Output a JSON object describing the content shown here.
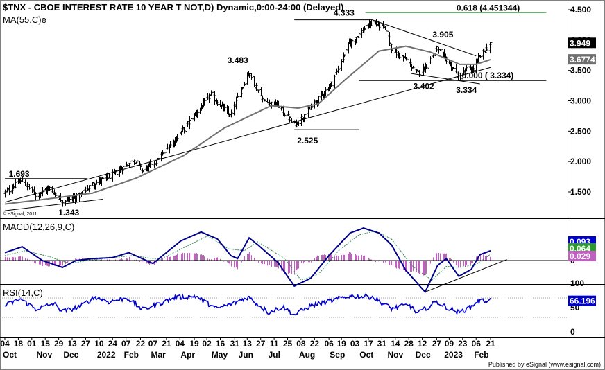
{
  "header": {
    "title": "$TNX - CBOE INTEREST RATE 10 YEAR T NOT,D) Dynamic,0:00-24:00 (Delayed)",
    "ma_label": "MA(55,C)e",
    "copyright": "© eSignal, 2011"
  },
  "publisher": "Published by eSignal (www.esignal.com)",
  "colors": {
    "price_bars": "#000000",
    "ma_line": "#707070",
    "fib_line": "#2e9a2e",
    "macd_line": "#00008b",
    "signal_line": "#2e8b57",
    "histogram": "#c060c0",
    "rsi_line": "#0000cd",
    "tag_price": "#000000",
    "tag_ma": "#707070",
    "tag_green": "#2e9a2e",
    "tag_blue": "#0000cd",
    "tag_histo": "#c060c0"
  },
  "chart_data": [
    {
      "id": "price",
      "type": "ohlc",
      "title": "$TNX - CBOE INTEREST RATE 10 YEAR T NOT,D) Dynamic,0:00-24:00 (Delayed)",
      "ylim": [
        1.0,
        4.55
      ],
      "yticks": [
        "4.500",
        "4.000",
        "3.500",
        "3.000",
        "2.500",
        "2.000",
        "1.500"
      ],
      "ytick_values": [
        4.5,
        4.0,
        3.5,
        3.0,
        2.5,
        2.0,
        1.5
      ],
      "x_date_range": [
        "2021-10-04",
        "2023-02-21"
      ],
      "anchors": [
        [
          "2021-10-04",
          1.48
        ],
        [
          "2021-10-21",
          1.69
        ],
        [
          "2021-11-05",
          1.45
        ],
        [
          "2021-11-19",
          1.56
        ],
        [
          "2021-12-03",
          1.35
        ],
        [
          "2021-12-20",
          1.43
        ],
        [
          "2022-01-03",
          1.63
        ],
        [
          "2022-01-24",
          1.78
        ],
        [
          "2022-02-08",
          1.95
        ],
        [
          "2022-02-15",
          2.04
        ],
        [
          "2022-02-24",
          1.85
        ],
        [
          "2022-03-10",
          2.0
        ],
        [
          "2022-04-01",
          2.4
        ],
        [
          "2022-05-06",
          3.1
        ],
        [
          "2022-05-26",
          2.75
        ],
        [
          "2022-06-14",
          3.47
        ],
        [
          "2022-06-30",
          3.0
        ],
        [
          "2022-07-15",
          2.92
        ],
        [
          "2022-08-01",
          2.6
        ],
        [
          "2022-08-18",
          2.88
        ],
        [
          "2022-09-09",
          3.3
        ],
        [
          "2022-09-27",
          3.95
        ],
        [
          "2022-10-21",
          4.3
        ],
        [
          "2022-11-04",
          4.18
        ],
        [
          "2022-11-11",
          3.82
        ],
        [
          "2022-11-25",
          3.68
        ],
        [
          "2022-12-07",
          3.45
        ],
        [
          "2022-12-13",
          3.52
        ],
        [
          "2022-12-27",
          3.86
        ],
        [
          "2023-01-05",
          3.7
        ],
        [
          "2023-01-19",
          3.39
        ],
        [
          "2023-01-27",
          3.52
        ],
        [
          "2023-02-03",
          3.52
        ],
        [
          "2023-02-10",
          3.74
        ],
        [
          "2023-02-21",
          3.95
        ]
      ],
      "ma_anchors": [
        [
          "2021-10-04",
          1.3
        ],
        [
          "2021-11-15",
          1.38
        ],
        [
          "2022-01-03",
          1.48
        ],
        [
          "2022-02-18",
          1.73
        ],
        [
          "2022-04-08",
          2.1
        ],
        [
          "2022-05-20",
          2.55
        ],
        [
          "2022-07-08",
          2.92
        ],
        [
          "2022-08-05",
          2.88
        ],
        [
          "2022-08-26",
          2.95
        ],
        [
          "2022-09-23",
          3.35
        ],
        [
          "2022-10-28",
          3.82
        ],
        [
          "2022-11-25",
          3.9
        ],
        [
          "2022-12-21",
          3.8
        ],
        [
          "2023-01-20",
          3.6
        ],
        [
          "2023-02-06",
          3.6
        ],
        [
          "2023-02-21",
          3.68
        ]
      ],
      "annotations": [
        {
          "text": "4.333",
          "date": "2022-10-14",
          "value": 4.333
        },
        {
          "text": "3.905",
          "date": "2022-12-27",
          "value": 3.905
        },
        {
          "text": "3.483",
          "date": "2022-06-14",
          "value": 3.483
        },
        {
          "text": "3.402",
          "date": "2022-12-07",
          "value": 3.402
        },
        {
          "text": "3.334",
          "date": "2023-01-19",
          "value": 3.334
        },
        {
          "text": "2.525",
          "date": "2022-08-01",
          "value": 2.525
        },
        {
          "text": "1.693",
          "date": "2021-10-21",
          "value": 1.693
        },
        {
          "text": "1.343",
          "date": "2021-12-03",
          "value": 1.343
        },
        {
          "text": "0.000 ( 3.334)",
          "date": "2023-01-25",
          "value": 3.334
        },
        {
          "text": "0.618 (4.451344)",
          "date": "2023-01-05",
          "value": 4.451344
        }
      ],
      "trendlines": [
        {
          "name": "support-trendline",
          "from": [
            "2021-10-04",
            1.33
          ],
          "to": [
            "2023-02-21",
            3.55
          ]
        },
        {
          "name": "falling-trendline",
          "from": [
            "2022-10-21",
            4.333
          ],
          "to": [
            "2023-02-06",
            3.74
          ]
        },
        {
          "name": "lower-channel-line",
          "from": [
            "2022-11-30",
            3.45
          ],
          "to": [
            "2023-02-10",
            3.28
          ]
        },
        {
          "name": "early-lower-line",
          "from": [
            "2021-10-04",
            1.19
          ],
          "to": [
            "2022-01-14",
            1.38
          ]
        },
        {
          "name": "early-upper-line",
          "from": [
            "2021-10-04",
            1.72
          ],
          "to": [
            "2021-12-29",
            1.72
          ]
        },
        {
          "name": "high-4333-line",
          "from": [
            "2022-08-01",
            4.333
          ],
          "to": [
            "2022-10-21",
            4.333
          ]
        },
        {
          "name": "low-2525-line",
          "from": [
            "2022-08-01",
            2.525
          ],
          "to": [
            "2022-10-07",
            2.525
          ]
        },
        {
          "name": "low-3334-line",
          "from": [
            "2022-10-07",
            3.334
          ],
          "to": [
            "2023-04-20",
            3.334
          ]
        },
        {
          "name": "fib-0618-line",
          "from": [
            "2022-10-14",
            4.451344
          ],
          "to": [
            "2023-04-20",
            4.451344
          ]
        }
      ],
      "tags": [
        {
          "text": "3.949",
          "value": 3.949,
          "kind": "price"
        },
        {
          "text": "3.67741",
          "value": 3.67741,
          "kind": "ma"
        }
      ]
    },
    {
      "id": "macd",
      "type": "line",
      "title": "MACD(12,26,9,C)",
      "ylim": [
        -0.42,
        0.42
      ],
      "zero_line": 0,
      "macd_anchors": [
        [
          "2021-10-04",
          0.08
        ],
        [
          "2021-10-22",
          0.14
        ],
        [
          "2021-11-12",
          0.0
        ],
        [
          "2021-12-03",
          -0.07
        ],
        [
          "2021-12-17",
          0.0
        ],
        [
          "2022-01-03",
          0.02
        ],
        [
          "2022-01-24",
          0.03
        ],
        [
          "2022-02-10",
          0.08
        ],
        [
          "2022-03-07",
          -0.03
        ],
        [
          "2022-04-05",
          0.2
        ],
        [
          "2022-04-26",
          0.29
        ],
        [
          "2022-05-13",
          0.22
        ],
        [
          "2022-05-27",
          0.05
        ],
        [
          "2022-06-03",
          0.02
        ],
        [
          "2022-06-15",
          0.23
        ],
        [
          "2022-06-24",
          0.16
        ],
        [
          "2022-07-15",
          -0.02
        ],
        [
          "2022-08-01",
          -0.26
        ],
        [
          "2022-08-18",
          -0.18
        ],
        [
          "2022-09-06",
          0.05
        ],
        [
          "2022-09-28",
          0.28
        ],
        [
          "2022-10-12",
          0.33
        ],
        [
          "2022-10-28",
          0.28
        ],
        [
          "2022-11-10",
          0.16
        ],
        [
          "2022-11-25",
          -0.1
        ],
        [
          "2022-12-15",
          -0.32
        ],
        [
          "2022-12-28",
          -0.05
        ],
        [
          "2023-01-06",
          0.02
        ],
        [
          "2023-01-19",
          -0.16
        ],
        [
          "2023-02-01",
          -0.09
        ],
        [
          "2023-02-10",
          0.06
        ],
        [
          "2023-02-21",
          0.1
        ]
      ],
      "signal_anchors": [
        [
          "2021-10-04",
          0.05
        ],
        [
          "2021-10-25",
          0.1
        ],
        [
          "2021-11-19",
          0.04
        ],
        [
          "2021-12-10",
          -0.03
        ],
        [
          "2022-01-05",
          0.01
        ],
        [
          "2022-02-14",
          0.05
        ],
        [
          "2022-03-14",
          0.01
        ],
        [
          "2022-04-12",
          0.15
        ],
        [
          "2022-05-03",
          0.25
        ],
        [
          "2022-05-24",
          0.12
        ],
        [
          "2022-06-10",
          0.1
        ],
        [
          "2022-06-24",
          0.19
        ],
        [
          "2022-07-22",
          0.02
        ],
        [
          "2022-08-08",
          -0.2
        ],
        [
          "2022-08-26",
          -0.14
        ],
        [
          "2022-09-16",
          0.1
        ],
        [
          "2022-10-07",
          0.26
        ],
        [
          "2022-10-24",
          0.3
        ],
        [
          "2022-11-10",
          0.22
        ],
        [
          "2022-12-01",
          -0.05
        ],
        [
          "2022-12-22",
          -0.2
        ],
        [
          "2023-01-06",
          -0.06
        ],
        [
          "2023-01-20",
          -0.07
        ],
        [
          "2023-02-06",
          -0.04
        ],
        [
          "2023-02-21",
          0.064
        ]
      ],
      "trendlines": [
        {
          "name": "macd-support-line",
          "from": [
            "2022-12-15",
            -0.32
          ],
          "to": [
            "2023-03-10",
            0.01
          ]
        },
        {
          "name": "macd-zero-extension",
          "from": [
            "2023-02-21",
            0.0
          ],
          "to": [
            "2023-04-20",
            0.0
          ]
        }
      ],
      "tags": [
        {
          "text": "0.093",
          "value": 0.093,
          "kind": "blue"
        },
        {
          "text": "0.064",
          "value": 0.064,
          "kind": "green"
        },
        {
          "text": "0.029",
          "value": 0.029,
          "kind": "histo"
        }
      ],
      "yticks": [
        "0"
      ],
      "ytick_values": [
        0
      ]
    },
    {
      "id": "rsi",
      "type": "line",
      "title": "RSI(14,C)",
      "ylim": [
        0,
        100
      ],
      "yticks": [
        "100",
        "50",
        "0"
      ],
      "ytick_values": [
        100,
        50,
        0
      ],
      "reference_lines": [
        70,
        30
      ],
      "rsi_anchors": [
        [
          "2021-10-04",
          54
        ],
        [
          "2021-10-20",
          68
        ],
        [
          "2021-11-05",
          47
        ],
        [
          "2021-11-24",
          58
        ],
        [
          "2021-12-03",
          42
        ],
        [
          "2021-12-21",
          52
        ],
        [
          "2022-01-06",
          72
        ],
        [
          "2022-01-20",
          62
        ],
        [
          "2022-02-08",
          70
        ],
        [
          "2022-02-24",
          46
        ],
        [
          "2022-03-10",
          55
        ],
        [
          "2022-03-28",
          70
        ],
        [
          "2022-04-20",
          74
        ],
        [
          "2022-05-12",
          48
        ],
        [
          "2022-05-31",
          60
        ],
        [
          "2022-06-14",
          72
        ],
        [
          "2022-07-05",
          40
        ],
        [
          "2022-07-20",
          52
        ],
        [
          "2022-08-01",
          35
        ],
        [
          "2022-08-18",
          54
        ],
        [
          "2022-09-08",
          64
        ],
        [
          "2022-09-27",
          74
        ],
        [
          "2022-10-21",
          72
        ],
        [
          "2022-11-10",
          48
        ],
        [
          "2022-11-28",
          56
        ],
        [
          "2022-12-07",
          38
        ],
        [
          "2022-12-27",
          62
        ],
        [
          "2023-01-05",
          52
        ],
        [
          "2023-01-19",
          40
        ],
        [
          "2023-01-31",
          50
        ],
        [
          "2023-02-06",
          62
        ],
        [
          "2023-02-21",
          66.196
        ]
      ],
      "tags": [
        {
          "text": "66.196",
          "value": 66.196,
          "kind": "blue"
        }
      ]
    }
  ],
  "x_axis": {
    "day_ticks": [
      {
        "label": "04",
        "date": "2021-10-04"
      },
      {
        "label": "18",
        "date": "2021-10-18"
      },
      {
        "label": "01",
        "date": "2021-11-01"
      },
      {
        "label": "15",
        "date": "2021-11-15"
      },
      {
        "label": "29",
        "date": "2021-11-29"
      },
      {
        "label": "13",
        "date": "2021-12-13"
      },
      {
        "label": "27",
        "date": "2021-12-27"
      },
      {
        "label": "10",
        "date": "2022-01-10"
      },
      {
        "label": "24",
        "date": "2022-01-24"
      },
      {
        "label": "07",
        "date": "2022-02-07"
      },
      {
        "label": "22",
        "date": "2022-02-22"
      },
      {
        "label": "07",
        "date": "2022-03-07"
      },
      {
        "label": "21",
        "date": "2022-03-21"
      },
      {
        "label": "04",
        "date": "2022-04-04"
      },
      {
        "label": "19",
        "date": "2022-04-19"
      },
      {
        "label": "02",
        "date": "2022-05-02"
      },
      {
        "label": "16",
        "date": "2022-05-16"
      },
      {
        "label": "31",
        "date": "2022-05-31"
      },
      {
        "label": "13",
        "date": "2022-06-13"
      },
      {
        "label": "27",
        "date": "2022-06-27"
      },
      {
        "label": "11",
        "date": "2022-07-11"
      },
      {
        "label": "25",
        "date": "2022-07-25"
      },
      {
        "label": "08",
        "date": "2022-08-08"
      },
      {
        "label": "22",
        "date": "2022-08-22"
      },
      {
        "label": "06",
        "date": "2022-09-06"
      },
      {
        "label": "19",
        "date": "2022-09-19"
      },
      {
        "label": "03",
        "date": "2022-10-03"
      },
      {
        "label": "17",
        "date": "2022-10-17"
      },
      {
        "label": "31",
        "date": "2022-10-31"
      },
      {
        "label": "14",
        "date": "2022-11-14"
      },
      {
        "label": "28",
        "date": "2022-11-28"
      },
      {
        "label": "12",
        "date": "2022-12-12"
      },
      {
        "label": "27",
        "date": "2022-12-27"
      },
      {
        "label": "09",
        "date": "2023-01-09"
      },
      {
        "label": "23",
        "date": "2023-01-23"
      },
      {
        "label": "06",
        "date": "2023-02-06"
      },
      {
        "label": "21",
        "date": "2023-02-21"
      }
    ],
    "month_labels": [
      {
        "label": "Oct",
        "date": "2021-10-04"
      },
      {
        "label": "Nov",
        "date": "2021-11-08"
      },
      {
        "label": "Dec",
        "date": "2021-12-06"
      },
      {
        "label": "2022",
        "date": "2022-01-10"
      },
      {
        "label": "Feb",
        "date": "2022-02-07"
      },
      {
        "label": "Mar",
        "date": "2022-03-07"
      },
      {
        "label": "Apr",
        "date": "2022-04-07"
      },
      {
        "label": "May",
        "date": "2022-05-09"
      },
      {
        "label": "Jun",
        "date": "2022-06-06"
      },
      {
        "label": "Jul",
        "date": "2022-07-07"
      },
      {
        "label": "Aug",
        "date": "2022-08-08"
      },
      {
        "label": "Sep",
        "date": "2022-09-09"
      },
      {
        "label": "Oct",
        "date": "2022-10-10"
      },
      {
        "label": "Nov",
        "date": "2022-11-08"
      },
      {
        "label": "Dec",
        "date": "2022-12-07"
      },
      {
        "label": "2023",
        "date": "2023-01-06"
      },
      {
        "label": "Feb",
        "date": "2023-02-06"
      }
    ]
  }
}
